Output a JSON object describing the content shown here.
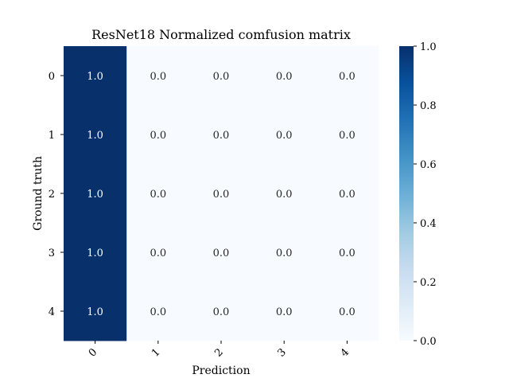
{
  "chart_data": {
    "type": "heatmap",
    "title": "ResNet18 Normalized comfusion matrix",
    "xlabel": "Prediction",
    "ylabel": "Ground truth",
    "x_categories": [
      "0",
      "1",
      "2",
      "3",
      "4"
    ],
    "y_categories": [
      "0",
      "1",
      "2",
      "3",
      "4"
    ],
    "values": [
      [
        1.0,
        0.0,
        0.0,
        0.0,
        0.0
      ],
      [
        1.0,
        0.0,
        0.0,
        0.0,
        0.0
      ],
      [
        1.0,
        0.0,
        0.0,
        0.0,
        0.0
      ],
      [
        1.0,
        0.0,
        0.0,
        0.0,
        0.0
      ],
      [
        1.0,
        0.0,
        0.0,
        0.0,
        0.0
      ]
    ],
    "cell_labels": [
      [
        "1.0",
        "0.0",
        "0.0",
        "0.0",
        "0.0"
      ],
      [
        "1.0",
        "0.0",
        "0.0",
        "0.0",
        "0.0"
      ],
      [
        "1.0",
        "0.0",
        "0.0",
        "0.0",
        "0.0"
      ],
      [
        "1.0",
        "0.0",
        "0.0",
        "0.0",
        "0.0"
      ],
      [
        "1.0",
        "0.0",
        "0.0",
        "0.0",
        "0.0"
      ]
    ],
    "colorbar": {
      "range": [
        0.0,
        1.0
      ],
      "ticks": [
        "0.0",
        "0.2",
        "0.4",
        "0.6",
        "0.8",
        "1.0"
      ]
    },
    "colormap": "Blues",
    "colors": {
      "low": "#f7fbff",
      "high": "#08306b",
      "label_on_dark": "#ffffff",
      "label_on_light": "#262626"
    }
  }
}
